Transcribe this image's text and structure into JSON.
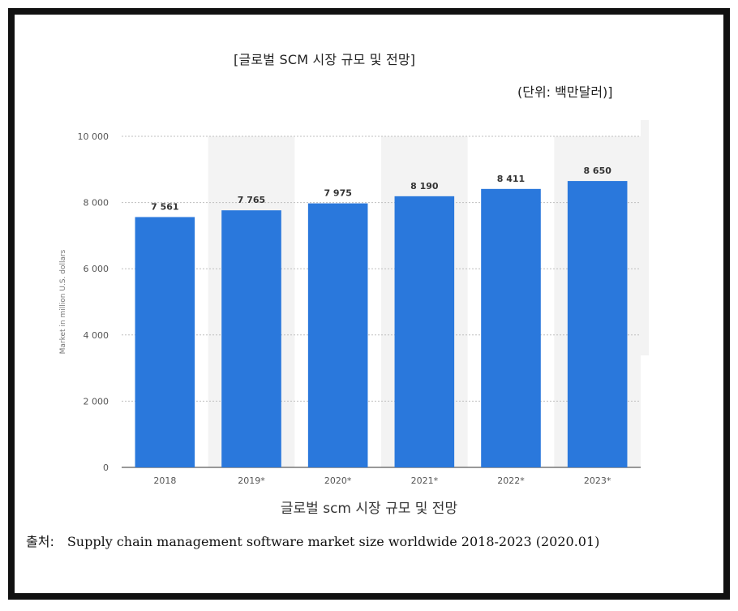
{
  "header": {
    "title": "[글로벌 SCM 시장 규모 및 전망]",
    "unit": "(단위: 백만달러)]"
  },
  "caption": "글로벌 scm 시장 규모 및 전망",
  "source": {
    "label": "출처:",
    "text": "Supply chain management software market size worldwide 2018-2023 (2020.01)"
  },
  "colors": {
    "bar": "#2a78dc",
    "band": "#f3f3f3",
    "grid": "#bfbfbf",
    "frame": "#111111"
  },
  "chart_data": {
    "type": "bar",
    "categories": [
      "2018",
      "2019*",
      "2020*",
      "2021*",
      "2022*",
      "2023*"
    ],
    "values": [
      7561,
      7765,
      7975,
      8190,
      8411,
      8650
    ],
    "value_labels": [
      "7 561",
      "7 765",
      "7 975",
      "8 190",
      "8 411",
      "8 650"
    ],
    "ylabel": "Market in million U.S. dollars",
    "ylim": [
      0,
      10000
    ],
    "yticks": [
      0,
      2000,
      4000,
      6000,
      8000,
      10000
    ],
    "ytick_labels": [
      "0",
      "2 000",
      "4 000",
      "6 000",
      "8 000",
      "10 000"
    ],
    "grid": true,
    "legend": "none"
  }
}
